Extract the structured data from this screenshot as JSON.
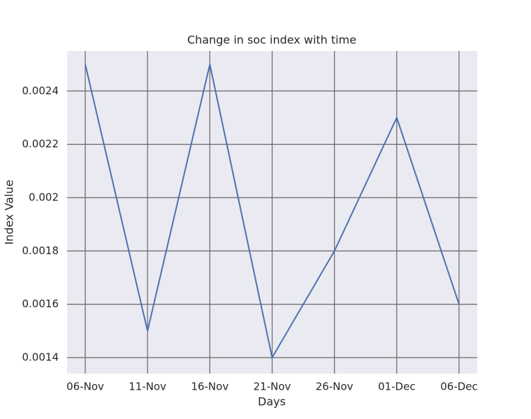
{
  "chart_data": {
    "type": "line",
    "title": "Change in soc index with time",
    "x_label": "Days",
    "y_label": "Index Value",
    "categories": [
      "06-Nov",
      "11-Nov",
      "16-Nov",
      "21-Nov",
      "26-Nov",
      "01-Dec",
      "06-Dec"
    ],
    "series": [
      {
        "name": "soc index",
        "color": "#4c72b0",
        "values": [
          0.0025,
          0.0015,
          0.0025,
          0.0014,
          0.0018,
          0.0023,
          0.0016
        ]
      }
    ],
    "ylim": [
      0.00134,
      0.00255
    ],
    "yticks": [
      0.0014,
      0.0016,
      0.0018,
      0.002,
      0.0022,
      0.0024
    ],
    "grid": true
  }
}
